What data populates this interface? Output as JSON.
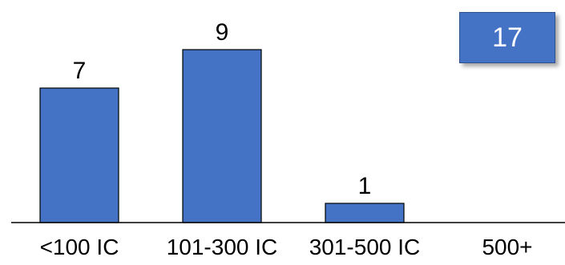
{
  "chart_data": {
    "type": "bar",
    "categories": [
      "<100 IC",
      "101-300 IC",
      "301-500 IC",
      "500+"
    ],
    "values": [
      7,
      9,
      1,
      0
    ],
    "data_labels": [
      "7",
      "9",
      "1",
      ""
    ],
    "ylim": [
      0,
      9
    ],
    "grid": false,
    "bar_color": "#4472c4",
    "bar_border_color": "#000000"
  },
  "total_box": {
    "value": "17",
    "background": "#4472c4"
  }
}
